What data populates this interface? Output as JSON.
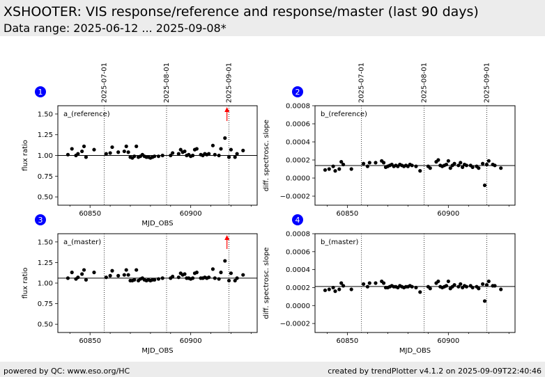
{
  "header": {
    "title": "XSHOOTER: VIS response/reference and response/master (last 90 days)",
    "subtitle": "Data range: 2025-06-12 ... 2025-09-08*"
  },
  "footer": {
    "left": "powered by QC: www.eso.org/HC",
    "right": "created by trendPlotter v4.1.2 on 2025-09-09T22:40:46"
  },
  "colors": {
    "marker": "#0000ff",
    "points": "#000000",
    "outlier": "#ff0000",
    "band": "#ececec"
  },
  "date_markers": [
    {
      "label": "2025-07-01",
      "mjd": 60857
    },
    {
      "label": "2025-08-01",
      "mjd": 60888
    },
    {
      "label": "2025-09-01",
      "mjd": 60919
    }
  ],
  "chart_data": [
    {
      "type": "scatter",
      "panel_number": "1",
      "label": "a_(reference)",
      "xlabel": "MJD_OBS",
      "ylabel": "flux ratio",
      "xlim": [
        60834,
        60933
      ],
      "ylim": [
        0.4,
        1.6
      ],
      "xticks": [
        60850,
        60900
      ],
      "yticks": [
        0.5,
        0.75,
        1.0,
        1.25,
        1.5
      ],
      "ytick_labels": [
        "0.50",
        "0.75",
        "1.00",
        "1.25",
        "1.50"
      ],
      "reference_line": 1.0,
      "outlier_arrow_x": 60918,
      "x": [
        60839,
        60841,
        60843,
        60844,
        60846,
        60847,
        60848,
        60852,
        60858,
        60860,
        60861,
        60864,
        60867,
        60868,
        60869,
        60870,
        60871,
        60872,
        60873,
        60874,
        60875,
        60876,
        60877,
        60878,
        60879,
        60880,
        60881,
        60882,
        60884,
        60886,
        60890,
        60891,
        60894,
        60895,
        60896,
        60897,
        60898,
        60899,
        60900,
        60901,
        60902,
        60903,
        60905,
        60906,
        60907,
        60908,
        60909,
        60911,
        60912,
        60914,
        60915,
        60917,
        60919,
        60920,
        60922,
        60923,
        60926
      ],
      "y": [
        1.01,
        1.08,
        1.0,
        1.02,
        1.05,
        1.11,
        0.98,
        1.07,
        1.02,
        1.03,
        1.1,
        1.04,
        1.05,
        1.11,
        1.04,
        0.98,
        0.97,
        0.99,
        1.11,
        0.98,
        0.99,
        1.01,
        0.99,
        0.98,
        0.98,
        0.97,
        0.98,
        0.99,
        0.99,
        1.0,
        1.0,
        1.03,
        1.02,
        1.07,
        1.04,
        1.05,
        1.0,
        1.01,
        0.99,
        1.0,
        1.07,
        1.08,
        1.01,
        1.0,
        1.02,
        1.01,
        1.02,
        1.12,
        1.01,
        1.0,
        1.08,
        1.21,
        0.98,
        1.07,
        0.98,
        1.02,
        1.06
      ]
    },
    {
      "type": "scatter",
      "panel_number": "2",
      "label": "b_(reference)",
      "xlabel": "",
      "ylabel": "diff. spectrosc. slope",
      "xlim": [
        60834,
        60933
      ],
      "ylim": [
        -0.0003,
        0.0008
      ],
      "xticks": [
        60850,
        60900
      ],
      "yticks": [
        -0.0002,
        0.0,
        0.0002,
        0.0004,
        0.0006,
        0.0008
      ],
      "ytick_labels": [
        "−0.0002",
        "0.0000",
        "0.0002",
        "0.0004",
        "0.0006",
        "0.0008"
      ],
      "reference_line": 0.000138,
      "outlier_arrow_x": null,
      "x": [
        60839,
        60841,
        60843,
        60844,
        60846,
        60847,
        60848,
        60852,
        60858,
        60860,
        60861,
        60864,
        60867,
        60868,
        60869,
        60870,
        60871,
        60872,
        60873,
        60874,
        60875,
        60876,
        60877,
        60878,
        60879,
        60880,
        60881,
        60882,
        60884,
        60886,
        60890,
        60891,
        60894,
        60895,
        60896,
        60897,
        60898,
        60899,
        60900,
        60901,
        60902,
        60903,
        60905,
        60906,
        60907,
        60908,
        60909,
        60911,
        60912,
        60914,
        60915,
        60917,
        60918,
        60919,
        60920,
        60922,
        60923,
        60926
      ],
      "y": [
        9e-05,
        0.0001,
        0.00013,
        8e-05,
        0.0001,
        0.00018,
        0.00015,
        0.0001,
        0.00016,
        0.00013,
        0.00017,
        0.00017,
        0.00019,
        0.00017,
        0.00012,
        0.00013,
        0.00014,
        0.00015,
        0.00013,
        0.00014,
        0.00013,
        0.00015,
        0.00014,
        0.00013,
        0.00014,
        0.00013,
        0.00015,
        0.00014,
        0.00013,
        8e-05,
        0.00013,
        0.00011,
        0.00018,
        0.0002,
        0.00014,
        0.00013,
        0.00014,
        0.00015,
        0.00019,
        0.00011,
        0.00014,
        0.00016,
        0.00014,
        0.00017,
        0.00012,
        0.00015,
        0.00014,
        0.00014,
        0.00012,
        0.00013,
        0.00011,
        0.00016,
        -8e-05,
        0.00015,
        0.00019,
        0.00015,
        0.00014,
        0.00011
      ]
    },
    {
      "type": "scatter",
      "panel_number": "3",
      "label": "a_(master)",
      "xlabel": "MJD_OBS",
      "ylabel": "flux ratio",
      "xlim": [
        60834,
        60933
      ],
      "ylim": [
        0.4,
        1.6
      ],
      "xticks": [
        60850,
        60900
      ],
      "yticks": [
        0.5,
        0.75,
        1.0,
        1.25,
        1.5
      ],
      "ytick_labels": [
        "0.50",
        "0.75",
        "1.00",
        "1.25",
        "1.50"
      ],
      "reference_line": 1.06,
      "outlier_arrow_x": 60918,
      "x": [
        60839,
        60841,
        60843,
        60844,
        60846,
        60847,
        60848,
        60852,
        60858,
        60860,
        60861,
        60864,
        60867,
        60868,
        60869,
        60870,
        60871,
        60872,
        60873,
        60874,
        60875,
        60876,
        60877,
        60878,
        60879,
        60880,
        60881,
        60882,
        60884,
        60886,
        60890,
        60891,
        60894,
        60895,
        60896,
        60897,
        60898,
        60899,
        60900,
        60901,
        60902,
        60903,
        60905,
        60906,
        60907,
        60908,
        60909,
        60911,
        60912,
        60914,
        60915,
        60917,
        60919,
        60920,
        60922,
        60923,
        60926
      ],
      "y": [
        1.06,
        1.13,
        1.05,
        1.07,
        1.11,
        1.16,
        1.04,
        1.13,
        1.07,
        1.09,
        1.15,
        1.09,
        1.1,
        1.16,
        1.1,
        1.03,
        1.03,
        1.04,
        1.16,
        1.03,
        1.05,
        1.06,
        1.04,
        1.03,
        1.04,
        1.03,
        1.04,
        1.04,
        1.05,
        1.06,
        1.06,
        1.08,
        1.07,
        1.12,
        1.1,
        1.11,
        1.06,
        1.06,
        1.05,
        1.06,
        1.12,
        1.13,
        1.06,
        1.06,
        1.07,
        1.06,
        1.07,
        1.17,
        1.06,
        1.05,
        1.13,
        1.27,
        1.03,
        1.12,
        1.03,
        1.06,
        1.1
      ]
    },
    {
      "type": "scatter",
      "panel_number": "4",
      "label": "b_(master)",
      "xlabel": "MJD_OBS",
      "ylabel": "diff. spectrosc. slope",
      "xlim": [
        60834,
        60933
      ],
      "ylim": [
        -0.0003,
        0.0008
      ],
      "xticks": [
        60850,
        60900
      ],
      "yticks": [
        -0.0002,
        0.0,
        0.0002,
        0.0004,
        0.0006,
        0.0008
      ],
      "ytick_labels": [
        "−0.0002",
        "0.0000",
        "0.0002",
        "0.0004",
        "0.0006",
        "0.0008"
      ],
      "reference_line": 0.000212,
      "outlier_arrow_x": null,
      "x": [
        60839,
        60841,
        60843,
        60844,
        60846,
        60847,
        60848,
        60852,
        60858,
        60860,
        60861,
        60864,
        60867,
        60868,
        60869,
        60870,
        60871,
        60872,
        60873,
        60874,
        60875,
        60876,
        60877,
        60878,
        60879,
        60880,
        60881,
        60882,
        60884,
        60886,
        60890,
        60891,
        60894,
        60895,
        60896,
        60897,
        60898,
        60899,
        60900,
        60901,
        60902,
        60903,
        60905,
        60906,
        60907,
        60908,
        60909,
        60911,
        60912,
        60914,
        60915,
        60917,
        60918,
        60919,
        60920,
        60922,
        60923,
        60926
      ],
      "y": [
        0.00017,
        0.00018,
        0.0002,
        0.00016,
        0.00018,
        0.00025,
        0.00022,
        0.00018,
        0.00024,
        0.00021,
        0.00025,
        0.00025,
        0.00027,
        0.00025,
        0.0002,
        0.0002,
        0.00021,
        0.00022,
        0.00021,
        0.00021,
        0.0002,
        0.00022,
        0.00021,
        0.0002,
        0.00021,
        0.00021,
        0.00022,
        0.00021,
        0.0002,
        0.00015,
        0.00021,
        0.00019,
        0.00025,
        0.00027,
        0.00021,
        0.0002,
        0.00021,
        0.00022,
        0.00027,
        0.00019,
        0.00021,
        0.00023,
        0.00021,
        0.00024,
        0.0002,
        0.00022,
        0.00021,
        0.00022,
        0.0002,
        0.00021,
        0.00019,
        0.00024,
        5e-05,
        0.00023,
        0.00027,
        0.00022,
        0.00022,
        0.00018
      ]
    }
  ]
}
